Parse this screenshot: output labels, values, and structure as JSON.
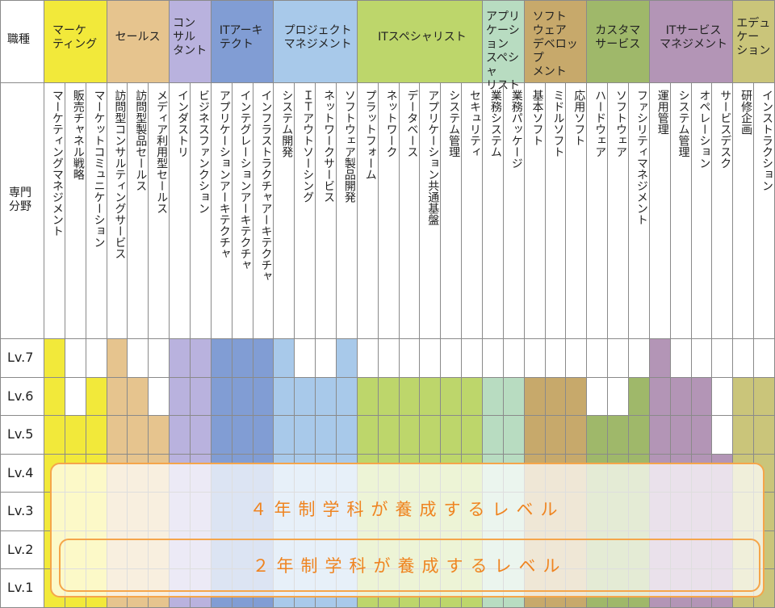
{
  "header": {
    "job_label": "職種",
    "field_label": "専門\n分野"
  },
  "levels": [
    "Lv.7",
    "Lv.6",
    "Lv.5",
    "Lv.4",
    "Lv.3",
    "Lv.2",
    "Lv.1"
  ],
  "groups": [
    {
      "name": "マーケ\nティング",
      "color": "#f2e93a",
      "fields": [
        "マーケティングマネジメント",
        "販売チャネル戦略",
        "マーケットコミュニケーション"
      ],
      "max_levels": [
        7,
        5,
        6
      ]
    },
    {
      "name": "セールス",
      "color": "#e6c48e",
      "fields": [
        "訪問型コンサルティングサービス",
        "訪問型製品セールス",
        "メディア利用型セールス"
      ],
      "max_levels": [
        7,
        6,
        5
      ]
    },
    {
      "name": "コン\nサル\nタント",
      "color": "#b9b2de",
      "fields": [
        "インダストリ",
        "ビジネスファンクション"
      ],
      "max_levels": [
        7,
        7
      ]
    },
    {
      "name": "ITアーキ\nテクト",
      "color": "#819dd4",
      "fields": [
        "アプリケーションアーキテクチャ",
        "インテグレーションアーキテクチャ",
        "インフラストラクチャアーキテクチャ"
      ],
      "max_levels": [
        7,
        7,
        7
      ]
    },
    {
      "name": "プロジェクト\nマネジメント",
      "color": "#a8c9ea",
      "fields": [
        "システム開発",
        "ＩＴアウトソーシング",
        "ネットワークサービス",
        "ソフトウェア製品開発"
      ],
      "max_levels": [
        7,
        6,
        6,
        7
      ]
    },
    {
      "name": "ITスペシャリスト",
      "color": "#bdd66b",
      "fields": [
        "プラットフォーム",
        "ネットワーク",
        "データベース",
        "アプリケーション共通基盤",
        "システム管理",
        "セキュリティ"
      ],
      "max_levels": [
        6,
        6,
        6,
        6,
        6,
        6
      ]
    },
    {
      "name": "アプリ\nケーション\nスペシャ\nリスト",
      "color": "#b8dcc1",
      "fields": [
        "業務システム",
        "業務パッケージ"
      ],
      "max_levels": [
        6,
        6
      ]
    },
    {
      "name": "ソフト\nウェア\nデベロップ\nメント",
      "color": "#c7a96b",
      "fields": [
        "基本ソフト",
        "ミドルソフト",
        "応用ソフト"
      ],
      "max_levels": [
        6,
        6,
        6
      ]
    },
    {
      "name": "カスタマ\nサービス",
      "color": "#9fb86a",
      "fields": [
        "ハードウェア",
        "ソフトウェア",
        "ファシリティマネジメント"
      ],
      "max_levels": [
        5,
        5,
        6
      ]
    },
    {
      "name": "ITサービス\nマネジメント",
      "color": "#b395b6",
      "fields": [
        "運用管理",
        "システム管理",
        "オペレーション",
        "サービスデスク"
      ],
      "max_levels": [
        7,
        6,
        6,
        4
      ]
    },
    {
      "name": "エデュ\nケー\nション",
      "color": "#cac57a",
      "fields": [
        "研修企画",
        "インストラクション"
      ],
      "max_levels": [
        6,
        6
      ]
    }
  ],
  "overlays": [
    "４年制学科が養成するレベル",
    "２年制学科が養成するレベル"
  ]
}
